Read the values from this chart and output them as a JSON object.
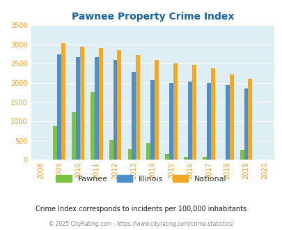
{
  "title": "Pawnee Property Crime Index",
  "years": [
    2008,
    2009,
    2010,
    2011,
    2012,
    2013,
    2014,
    2015,
    2016,
    2017,
    2018,
    2019,
    2020
  ],
  "pawnee": [
    0,
    880,
    1240,
    1770,
    505,
    275,
    435,
    150,
    80,
    80,
    0,
    255,
    0
  ],
  "illinois": [
    0,
    2750,
    2670,
    2670,
    2590,
    2290,
    2070,
    1995,
    2045,
    2005,
    1940,
    1850,
    0
  ],
  "national": [
    0,
    3040,
    2950,
    2910,
    2860,
    2730,
    2590,
    2500,
    2480,
    2380,
    2210,
    2110,
    0
  ],
  "pawnee_color": "#7dc142",
  "illinois_color": "#4d8fcc",
  "national_color": "#f5a623",
  "bg_color": "#ddeef4",
  "ylim": [
    0,
    3500
  ],
  "yticks": [
    0,
    500,
    1000,
    1500,
    2000,
    2500,
    3000,
    3500
  ],
  "subtitle": "Crime Index corresponds to incidents per 100,000 inhabitants",
  "footer": "© 2025 CityRating.com - https://www.cityrating.com/crime-statistics/",
  "title_color": "#1464a0",
  "subtitle_color": "#1a1a1a",
  "footer_color": "#888888",
  "tick_color": "#f0a030"
}
